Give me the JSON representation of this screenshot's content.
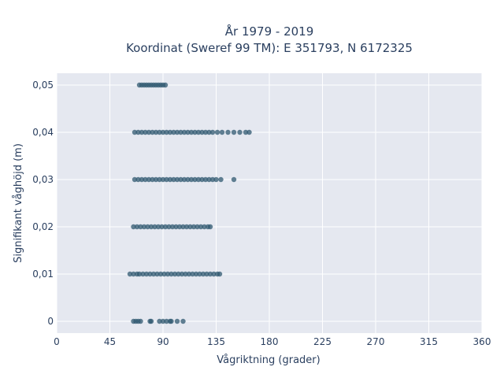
{
  "chart_data": {
    "type": "scatter",
    "title_line1": "År 1979 - 2019",
    "title_line2": "Koordinat (Sweref 99 TM): E 351793, N 6172325",
    "xlabel": "Vågriktning (grader)",
    "ylabel": "Signifikant våghöjd (m)",
    "xlim": [
      0,
      360
    ],
    "ylim": [
      -0.0025,
      0.0525
    ],
    "x_ticks": [
      0,
      45,
      90,
      135,
      180,
      225,
      270,
      315,
      360
    ],
    "x_tick_labels": [
      "0",
      "45",
      "90",
      "135",
      "180",
      "225",
      "270",
      "315",
      "360"
    ],
    "y_ticks": [
      0,
      0.01,
      0.02,
      0.03,
      0.04,
      0.05
    ],
    "y_tick_labels": [
      "0",
      "0,01",
      "0,02",
      "0,03",
      "0,04",
      "0,05"
    ],
    "grid": true,
    "colors": {
      "marker": "#2f5870",
      "plot_bg": "#e5e8f0",
      "grid": "#ffffff"
    },
    "series": [
      {
        "points": [
          [
            65,
            0
          ],
          [
            67,
            0
          ],
          [
            69,
            0
          ],
          [
            71,
            0
          ],
          [
            79,
            0
          ],
          [
            80,
            0
          ],
          [
            87,
            0
          ],
          [
            90,
            0
          ],
          [
            93,
            0
          ],
          [
            96,
            0
          ],
          [
            97,
            0
          ],
          [
            102,
            0
          ],
          [
            107,
            0
          ],
          [
            62,
            0.01
          ],
          [
            65,
            0.01
          ],
          [
            68,
            0.01
          ],
          [
            70,
            0.01
          ],
          [
            73,
            0.01
          ],
          [
            76,
            0.01
          ],
          [
            79,
            0.01
          ],
          [
            82,
            0.01
          ],
          [
            85,
            0.01
          ],
          [
            88,
            0.01
          ],
          [
            91,
            0.01
          ],
          [
            94,
            0.01
          ],
          [
            97,
            0.01
          ],
          [
            100,
            0.01
          ],
          [
            103,
            0.01
          ],
          [
            106,
            0.01
          ],
          [
            109,
            0.01
          ],
          [
            112,
            0.01
          ],
          [
            115,
            0.01
          ],
          [
            118,
            0.01
          ],
          [
            121,
            0.01
          ],
          [
            124,
            0.01
          ],
          [
            127,
            0.01
          ],
          [
            130,
            0.01
          ],
          [
            133,
            0.01
          ],
          [
            136,
            0.01
          ],
          [
            138,
            0.01
          ],
          [
            65,
            0.02
          ],
          [
            68,
            0.02
          ],
          [
            71,
            0.02
          ],
          [
            74,
            0.02
          ],
          [
            77,
            0.02
          ],
          [
            80,
            0.02
          ],
          [
            83,
            0.02
          ],
          [
            86,
            0.02
          ],
          [
            89,
            0.02
          ],
          [
            92,
            0.02
          ],
          [
            95,
            0.02
          ],
          [
            98,
            0.02
          ],
          [
            101,
            0.02
          ],
          [
            104,
            0.02
          ],
          [
            107,
            0.02
          ],
          [
            110,
            0.02
          ],
          [
            113,
            0.02
          ],
          [
            116,
            0.02
          ],
          [
            119,
            0.02
          ],
          [
            122,
            0.02
          ],
          [
            125,
            0.02
          ],
          [
            128,
            0.02
          ],
          [
            130,
            0.02
          ],
          [
            66,
            0.03
          ],
          [
            69,
            0.03
          ],
          [
            72,
            0.03
          ],
          [
            75,
            0.03
          ],
          [
            78,
            0.03
          ],
          [
            81,
            0.03
          ],
          [
            84,
            0.03
          ],
          [
            87,
            0.03
          ],
          [
            90,
            0.03
          ],
          [
            93,
            0.03
          ],
          [
            96,
            0.03
          ],
          [
            99,
            0.03
          ],
          [
            102,
            0.03
          ],
          [
            105,
            0.03
          ],
          [
            108,
            0.03
          ],
          [
            111,
            0.03
          ],
          [
            114,
            0.03
          ],
          [
            117,
            0.03
          ],
          [
            120,
            0.03
          ],
          [
            123,
            0.03
          ],
          [
            126,
            0.03
          ],
          [
            129,
            0.03
          ],
          [
            132,
            0.03
          ],
          [
            135,
            0.03
          ],
          [
            139,
            0.03
          ],
          [
            150,
            0.03
          ],
          [
            66,
            0.04
          ],
          [
            69,
            0.04
          ],
          [
            72,
            0.04
          ],
          [
            75,
            0.04
          ],
          [
            78,
            0.04
          ],
          [
            81,
            0.04
          ],
          [
            84,
            0.04
          ],
          [
            87,
            0.04
          ],
          [
            90,
            0.04
          ],
          [
            93,
            0.04
          ],
          [
            96,
            0.04
          ],
          [
            99,
            0.04
          ],
          [
            102,
            0.04
          ],
          [
            105,
            0.04
          ],
          [
            108,
            0.04
          ],
          [
            111,
            0.04
          ],
          [
            114,
            0.04
          ],
          [
            117,
            0.04
          ],
          [
            120,
            0.04
          ],
          [
            123,
            0.04
          ],
          [
            126,
            0.04
          ],
          [
            129,
            0.04
          ],
          [
            132,
            0.04
          ],
          [
            136,
            0.04
          ],
          [
            140,
            0.04
          ],
          [
            145,
            0.04
          ],
          [
            150,
            0.04
          ],
          [
            155,
            0.04
          ],
          [
            160,
            0.04
          ],
          [
            163,
            0.04
          ],
          [
            70,
            0.05
          ],
          [
            72,
            0.05
          ],
          [
            74,
            0.05
          ],
          [
            76,
            0.05
          ],
          [
            78,
            0.05
          ],
          [
            80,
            0.05
          ],
          [
            82,
            0.05
          ],
          [
            84,
            0.05
          ],
          [
            86,
            0.05
          ],
          [
            88,
            0.05
          ],
          [
            90,
            0.05
          ],
          [
            92,
            0.05
          ]
        ]
      }
    ]
  }
}
